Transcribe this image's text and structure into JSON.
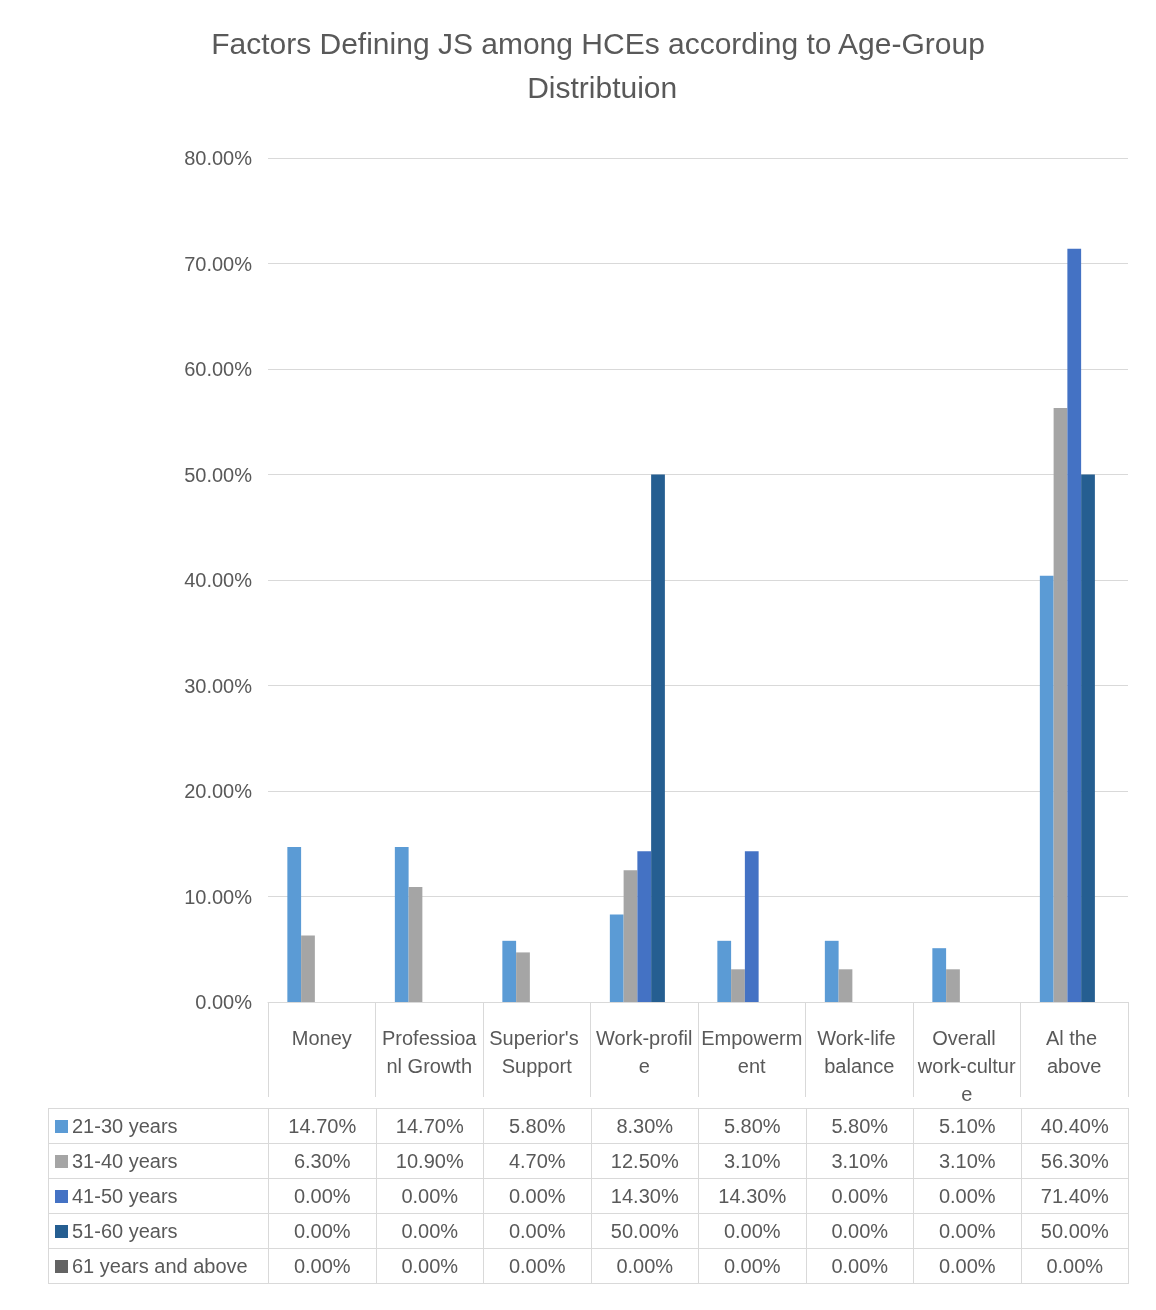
{
  "chart_data": {
    "type": "bar",
    "title": "Factors Defining JS among HCEs according to Age-Group Distribtuion",
    "categories": [
      "Money",
      "Professioanl Growth",
      "Superior's Support",
      "Work-profile",
      "Empowerment",
      "Work-life balance",
      "Overall work-culture",
      "Al the above"
    ],
    "series": [
      {
        "name": "21-30 years",
        "color": "#5b9bd5",
        "values": [
          14.7,
          14.7,
          5.8,
          8.3,
          5.8,
          5.8,
          5.1,
          40.4
        ],
        "value_labels": [
          "14.70%",
          "14.70%",
          "5.80%",
          "8.30%",
          "5.80%",
          "5.80%",
          "5.10%",
          "40.40%"
        ]
      },
      {
        "name": "31-40 years",
        "color": "#a5a5a5",
        "values": [
          6.3,
          10.9,
          4.7,
          12.5,
          3.1,
          3.1,
          3.1,
          56.3
        ],
        "value_labels": [
          "6.30%",
          "10.90%",
          "4.70%",
          "12.50%",
          "3.10%",
          "3.10%",
          "3.10%",
          "56.30%"
        ]
      },
      {
        "name": "41-50 years",
        "color": "#4472c4",
        "values": [
          0,
          0,
          0,
          14.3,
          14.3,
          0,
          0,
          71.4
        ],
        "value_labels": [
          "0.00%",
          "0.00%",
          "0.00%",
          "14.30%",
          "14.30%",
          "0.00%",
          "0.00%",
          "71.40%"
        ]
      },
      {
        "name": "51-60 years",
        "color": "#255e91",
        "values": [
          0,
          0,
          0,
          50,
          0,
          0,
          0,
          50
        ],
        "value_labels": [
          "0.00%",
          "0.00%",
          "0.00%",
          "50.00%",
          "0.00%",
          "0.00%",
          "0.00%",
          "50.00%"
        ]
      },
      {
        "name": "61 years and above",
        "color": "#636363",
        "values": [
          0,
          0,
          0,
          0,
          0,
          0,
          0,
          0
        ],
        "value_labels": [
          "0.00%",
          "0.00%",
          "0.00%",
          "0.00%",
          "0.00%",
          "0.00%",
          "0.00%",
          "0.00%"
        ]
      }
    ],
    "ylim": [
      0,
      80
    ],
    "yticks": [
      {
        "value": 0,
        "label": "0.00%"
      },
      {
        "value": 10,
        "label": "10.00%"
      },
      {
        "value": 20,
        "label": "20.00%"
      },
      {
        "value": 30,
        "label": "30.00%"
      },
      {
        "value": 40,
        "label": "40.00%"
      },
      {
        "value": 50,
        "label": "50.00%"
      },
      {
        "value": 60,
        "label": "60.00%"
      },
      {
        "value": 70,
        "label": "70.00%"
      },
      {
        "value": 80,
        "label": "80.00%"
      }
    ],
    "grid": "y",
    "legend": "bottom"
  }
}
